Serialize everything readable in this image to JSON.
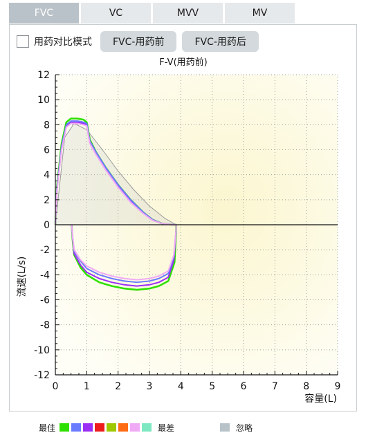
{
  "tabs": [
    {
      "label": "FVC",
      "active": true
    },
    {
      "label": "VC",
      "active": false
    },
    {
      "label": "MVV",
      "active": false
    },
    {
      "label": "MV",
      "active": false
    }
  ],
  "toolbar": {
    "compare_label": "用药对比模式",
    "compare_checked": false,
    "pre_button": "FVC-用药前",
    "post_button": "FVC-用药后"
  },
  "legend": {
    "best_label": "最佳",
    "worst_label": "最差",
    "ignore_label": "忽略",
    "colors": [
      "#2ee000",
      "#6b7bff",
      "#9b2ef5",
      "#ee1c1c",
      "#9ec800",
      "#ff6a14",
      "#f0a9f5",
      "#7de8c2"
    ],
    "ignore_color": "#b7c2c9"
  },
  "chart_data": {
    "type": "line",
    "title": "F-V(用药前)",
    "xlabel": "容量(L)",
    "ylabel": "流速(L/s)",
    "xlim": [
      0,
      9
    ],
    "ylim": [
      -12,
      12
    ],
    "xticks": [
      0,
      1,
      2,
      3,
      4,
      5,
      6,
      7,
      8,
      9
    ],
    "yticks": [
      12,
      10,
      8,
      6,
      4,
      2,
      0,
      -2,
      -4,
      -6,
      -8,
      -10,
      -12
    ],
    "grid": true,
    "series": [
      {
        "color": "#2ee000",
        "x": [
          0,
          0.05,
          0.2,
          0.35,
          0.5,
          0.7,
          0.9,
          1.0,
          1.1,
          1.3,
          1.6,
          2.0,
          2.4,
          2.8,
          3.1,
          3.4,
          3.7,
          3.85,
          3.85,
          3.8,
          3.6,
          3.3,
          3.0,
          2.6,
          2.2,
          1.8,
          1.4,
          1.0,
          0.8,
          0.6,
          0.55,
          0.52
        ],
        "y": [
          0,
          3.0,
          6.5,
          8.2,
          8.5,
          8.5,
          8.4,
          8.2,
          6.8,
          5.8,
          4.6,
          3.2,
          2.0,
          1.0,
          0.4,
          0.1,
          0.02,
          0,
          -0.5,
          -3.0,
          -4.5,
          -4.9,
          -5.1,
          -5.2,
          -5.1,
          -4.9,
          -4.6,
          -4.0,
          -3.4,
          -2.4,
          -1.2,
          0
        ]
      },
      {
        "color": "#9b2ef5",
        "x": [
          0,
          0.05,
          0.2,
          0.35,
          0.5,
          0.7,
          0.9,
          1.0,
          1.1,
          1.3,
          1.6,
          2.0,
          2.4,
          2.8,
          3.1,
          3.4,
          3.7,
          3.85,
          3.85,
          3.78,
          3.6,
          3.3,
          3.0,
          2.6,
          2.2,
          1.8,
          1.4,
          1.0,
          0.8,
          0.6,
          0.55,
          0.52
        ],
        "y": [
          0,
          2.8,
          6.2,
          7.9,
          8.2,
          8.2,
          8.1,
          8.0,
          6.6,
          5.7,
          4.5,
          3.1,
          1.9,
          1.0,
          0.4,
          0.1,
          0.02,
          0,
          -0.5,
          -2.8,
          -4.2,
          -4.6,
          -4.8,
          -4.9,
          -4.8,
          -4.6,
          -4.3,
          -3.8,
          -3.2,
          -2.3,
          -1.1,
          0
        ]
      },
      {
        "color": "#6b7bff",
        "x": [
          0,
          0.05,
          0.2,
          0.35,
          0.5,
          0.7,
          0.9,
          1.0,
          1.1,
          1.3,
          1.6,
          2.0,
          2.4,
          2.8,
          3.1,
          3.4,
          3.7,
          3.85,
          3.85,
          3.78,
          3.6,
          3.3,
          3.0,
          2.6,
          2.2,
          1.8,
          1.4,
          1.0,
          0.8,
          0.6,
          0.55,
          0.52
        ],
        "y": [
          0,
          2.9,
          6.3,
          8.0,
          8.3,
          8.3,
          8.2,
          8.1,
          6.7,
          5.8,
          4.6,
          3.2,
          2.0,
          1.0,
          0.4,
          0.1,
          0.02,
          0,
          -0.4,
          -2.5,
          -3.9,
          -4.3,
          -4.5,
          -4.6,
          -4.5,
          -4.3,
          -4.0,
          -3.5,
          -2.9,
          -2.1,
          -1.0,
          0
        ]
      },
      {
        "color": "#f0a9f5",
        "x": [
          0,
          0.05,
          0.2,
          0.35,
          0.5,
          0.7,
          0.9,
          1.0,
          1.1,
          1.3,
          1.6,
          2.0,
          2.4,
          2.8,
          3.1,
          3.4,
          3.7,
          3.85,
          3.85,
          3.78,
          3.6,
          3.3,
          3.0,
          2.6,
          2.2,
          1.8,
          1.4,
          1.0,
          0.8,
          0.6,
          0.55,
          0.52
        ],
        "y": [
          0,
          2.7,
          6.0,
          7.8,
          8.1,
          8.1,
          8.0,
          7.9,
          6.5,
          5.6,
          4.4,
          3.0,
          1.8,
          0.9,
          0.35,
          0.1,
          0.02,
          0,
          -0.4,
          -2.4,
          -3.7,
          -4.1,
          -4.3,
          -4.4,
          -4.3,
          -4.1,
          -3.8,
          -3.3,
          -2.8,
          -2.0,
          -1.0,
          0
        ]
      }
    ],
    "predicted": {
      "color": "#9a9a9a",
      "x": [
        0,
        0.3,
        0.6,
        1.0,
        1.5,
        2.0,
        2.5,
        3.0,
        3.5,
        3.85
      ],
      "y": [
        0,
        7.0,
        8.1,
        7.6,
        6.0,
        4.3,
        2.8,
        1.5,
        0.5,
        0
      ]
    }
  }
}
